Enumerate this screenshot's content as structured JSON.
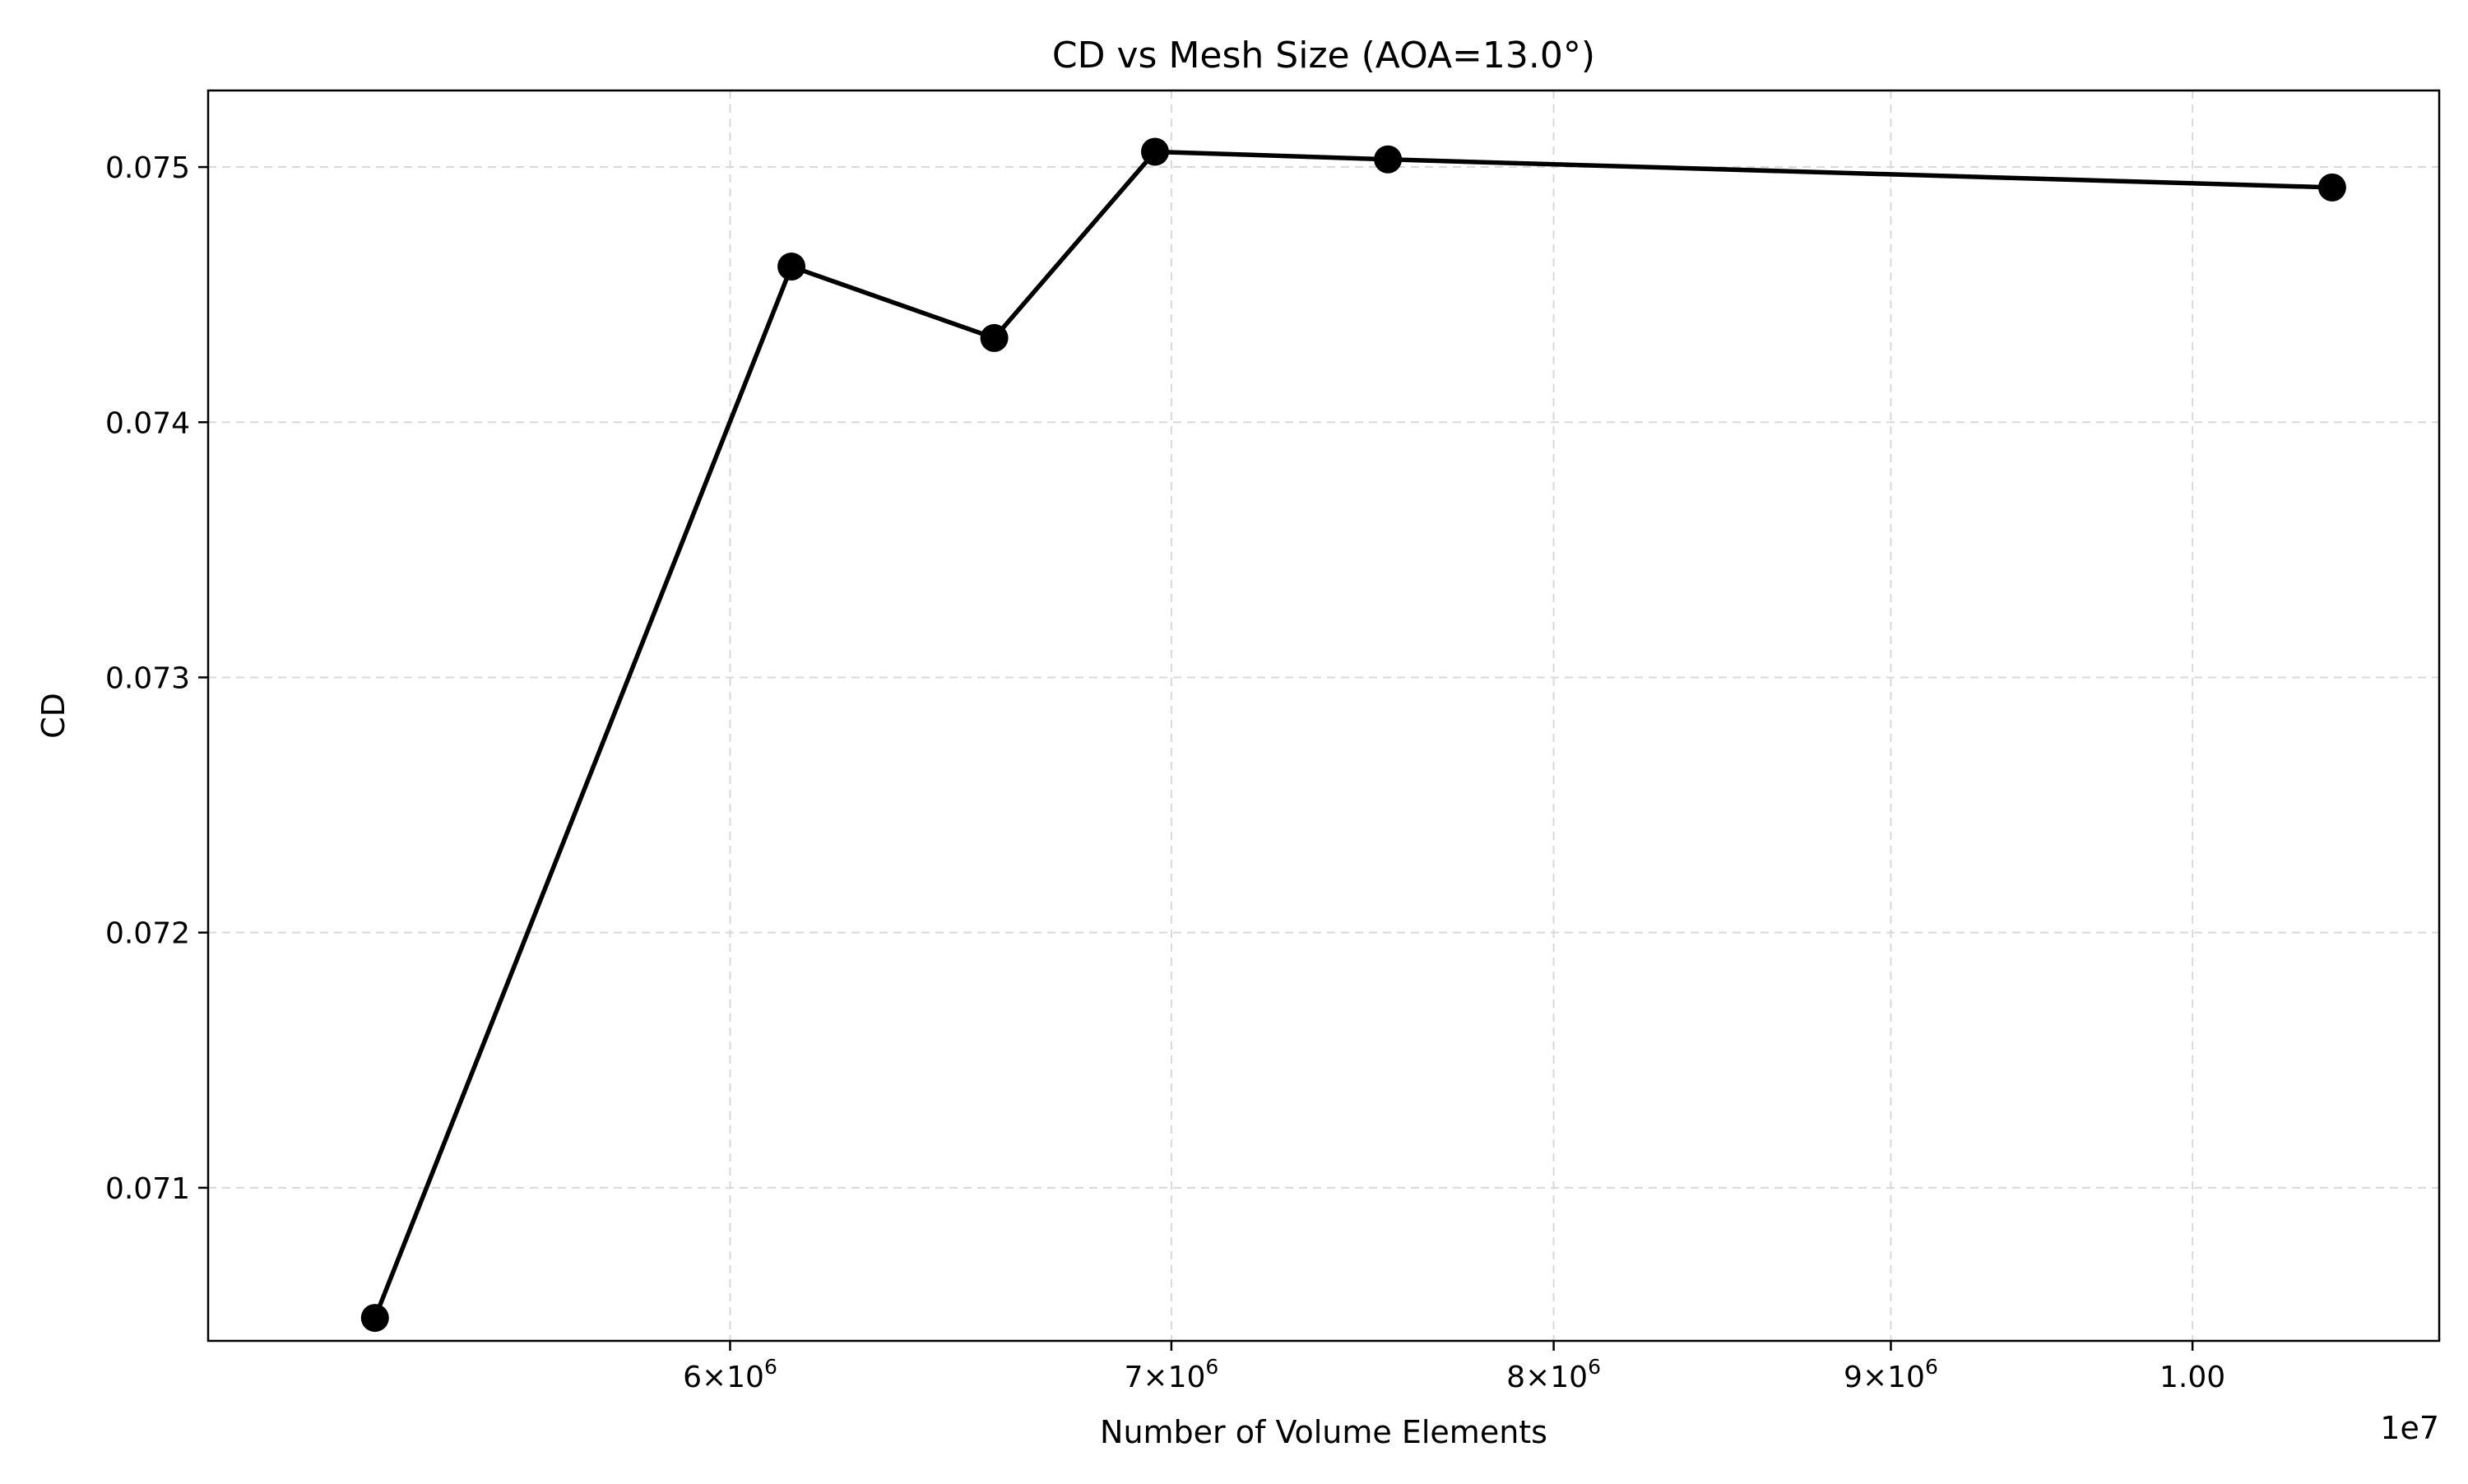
{
  "chart_data": {
    "type": "line",
    "title": "CD vs Mesh Size (AOA=13.0°)",
    "xlabel": "Number of Volume Elements",
    "ylabel": "CD",
    "x_scale": "log",
    "x_offset_label": "1e7",
    "xlim": [
      5000000,
      10900000
    ],
    "ylim": [
      0.0704,
      0.0753
    ],
    "grid": true,
    "line_color": "#000000",
    "marker": "circle",
    "x_ticks": [
      {
        "value": 6000000,
        "base": "6",
        "exp": "6"
      },
      {
        "value": 7000000,
        "base": "7",
        "exp": "6"
      },
      {
        "value": 8000000,
        "base": "8",
        "exp": "6"
      },
      {
        "value": 9000000,
        "base": "9",
        "exp": "6"
      },
      {
        "value": 10000000,
        "label": "1.00"
      }
    ],
    "y_ticks": [
      {
        "value": 0.071,
        "label": "0.071"
      },
      {
        "value": 0.072,
        "label": "0.072"
      },
      {
        "value": 0.073,
        "label": "0.073"
      },
      {
        "value": 0.074,
        "label": "0.074"
      },
      {
        "value": 0.075,
        "label": "0.075"
      }
    ],
    "series": [
      {
        "x": [
          5300000,
          6130000,
          6580000,
          6960000,
          7550000,
          10500000
        ],
        "y": [
          0.07049,
          0.07461,
          0.07433,
          0.07506,
          0.07503,
          0.07492
        ]
      }
    ]
  }
}
